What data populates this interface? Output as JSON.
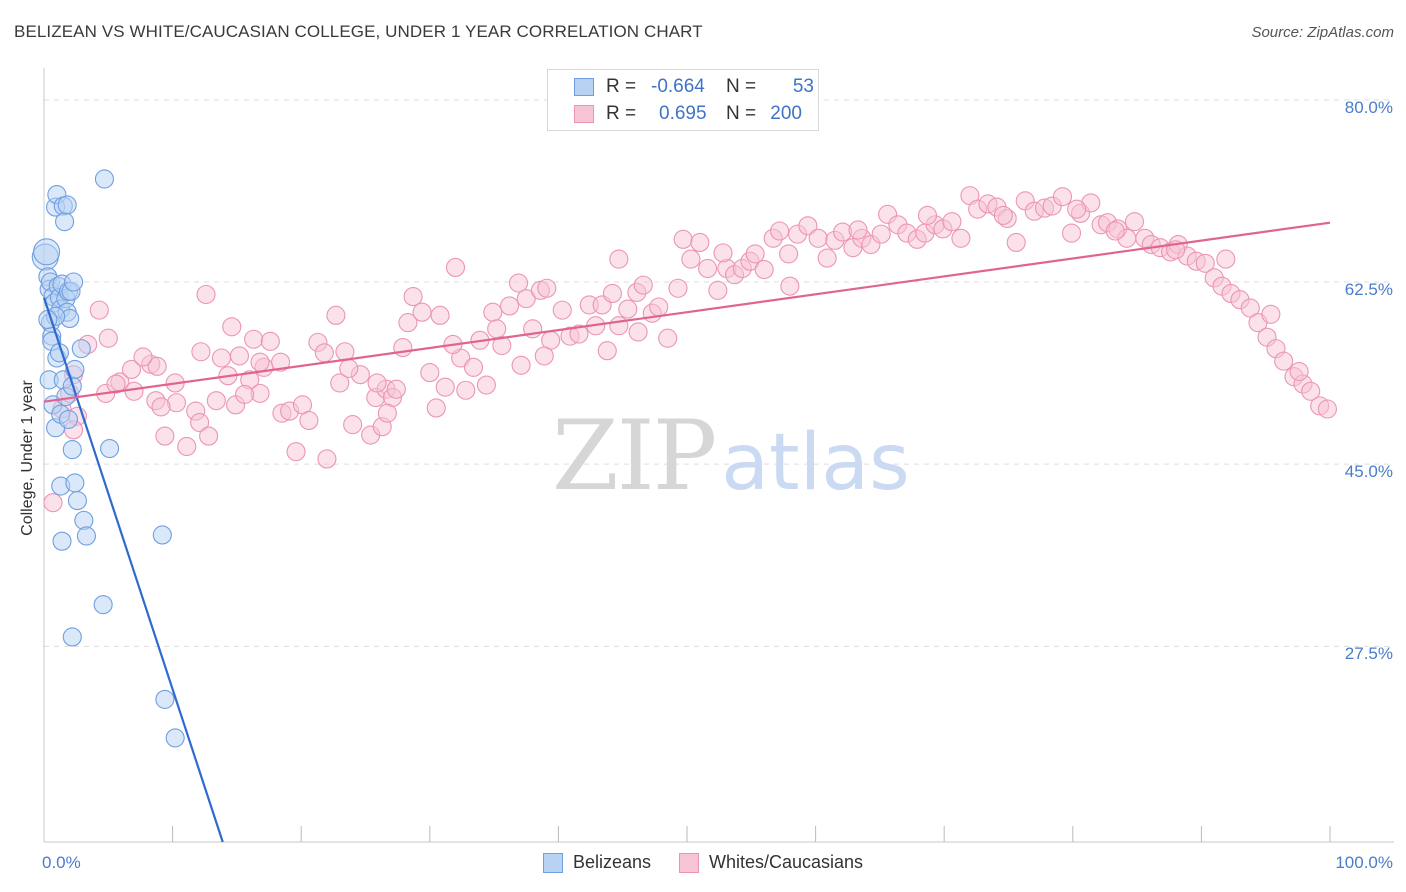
{
  "chart_data": {
    "type": "scatter",
    "title": "BELIZEAN VS WHITE/CAUCASIAN COLLEGE, UNDER 1 YEAR CORRELATION CHART",
    "source": "Source: ZipAtlas.com",
    "xlabel": "",
    "ylabel": "College, Under 1 year",
    "xlim": [
      0,
      100
    ],
    "ylim": [
      8.7,
      82.1
    ],
    "x_tick_labels": [
      "0.0%",
      "100.0%"
    ],
    "y_ticks": [
      {
        "value": 80.0,
        "label": "80.0%"
      },
      {
        "value": 62.5,
        "label": "62.5%"
      },
      {
        "value": 45.0,
        "label": "45.0%"
      },
      {
        "value": 27.5,
        "label": "27.5%"
      }
    ],
    "legend": [
      {
        "r_label": "R =",
        "r_value": "-0.664",
        "n_label": "N =",
        "n_value": "53"
      },
      {
        "r_label": "R =",
        "r_value": "0.695",
        "n_label": "N =",
        "n_value": "200"
      }
    ],
    "series": [
      {
        "name": "Belizeans",
        "color": "#6f9fe0",
        "fill": "#b8d2f4",
        "line_color": "#2f6bcf",
        "trend": {
          "x": [
            0.0,
            13.9
          ],
          "y": [
            61.0,
            8.7
          ]
        },
        "points": [
          [
            0.1,
            64.9
          ],
          [
            0.2,
            65.4
          ],
          [
            0.3,
            63.0
          ],
          [
            0.4,
            61.8
          ],
          [
            0.5,
            62.5
          ],
          [
            0.5,
            58.6
          ],
          [
            0.6,
            57.3
          ],
          [
            0.7,
            61.1
          ],
          [
            0.8,
            60.5
          ],
          [
            0.9,
            69.7
          ],
          [
            1.0,
            70.9
          ],
          [
            1.1,
            62.1
          ],
          [
            1.2,
            61.0
          ],
          [
            1.3,
            59.9
          ],
          [
            1.4,
            62.3
          ],
          [
            1.5,
            69.8
          ],
          [
            1.6,
            68.3
          ],
          [
            1.7,
            60.9
          ],
          [
            1.8,
            59.6
          ],
          [
            1.9,
            61.6
          ],
          [
            2.0,
            59.0
          ],
          [
            2.1,
            61.6
          ],
          [
            2.3,
            62.5
          ],
          [
            0.4,
            53.1
          ],
          [
            0.7,
            50.7
          ],
          [
            0.9,
            48.5
          ],
          [
            1.0,
            55.2
          ],
          [
            1.3,
            49.8
          ],
          [
            1.5,
            53.1
          ],
          [
            1.7,
            51.5
          ],
          [
            1.9,
            49.3
          ],
          [
            2.2,
            52.5
          ],
          [
            2.4,
            54.1
          ],
          [
            2.9,
            56.1
          ],
          [
            1.3,
            42.9
          ],
          [
            2.4,
            43.2
          ],
          [
            2.6,
            41.5
          ],
          [
            3.1,
            39.6
          ],
          [
            3.3,
            38.1
          ],
          [
            1.4,
            37.6
          ],
          [
            2.2,
            46.4
          ],
          [
            5.1,
            46.5
          ],
          [
            4.6,
            31.5
          ],
          [
            2.2,
            28.4
          ],
          [
            9.2,
            38.2
          ],
          [
            9.4,
            22.4
          ],
          [
            10.2,
            18.7
          ],
          [
            4.7,
            72.4
          ],
          [
            1.8,
            69.9
          ],
          [
            0.6,
            56.8
          ],
          [
            0.9,
            59.2
          ],
          [
            0.3,
            58.9
          ],
          [
            1.2,
            55.7
          ]
        ]
      },
      {
        "name": "Whites/Caucasians",
        "color": "#ec95b4",
        "fill": "#f7c4d6",
        "line_color": "#e0648f",
        "trend": {
          "x": [
            0.0,
            100.0
          ],
          "y": [
            51.0,
            68.2
          ]
        },
        "points": [
          [
            0.7,
            41.3
          ],
          [
            1.4,
            50.3
          ],
          [
            2.0,
            51.8
          ],
          [
            2.3,
            53.6
          ],
          [
            2.6,
            49.6
          ],
          [
            3.4,
            56.5
          ],
          [
            4.3,
            59.8
          ],
          [
            4.8,
            51.8
          ],
          [
            5.0,
            57.1
          ],
          [
            5.9,
            52.9
          ],
          [
            6.8,
            54.1
          ],
          [
            7.0,
            52.0
          ],
          [
            8.3,
            54.6
          ],
          [
            8.7,
            51.1
          ],
          [
            8.8,
            54.4
          ],
          [
            9.4,
            47.7
          ],
          [
            10.2,
            52.8
          ],
          [
            10.3,
            50.9
          ],
          [
            11.1,
            46.7
          ],
          [
            11.8,
            50.1
          ],
          [
            12.1,
            49.0
          ],
          [
            12.6,
            61.3
          ],
          [
            12.8,
            47.7
          ],
          [
            13.4,
            51.1
          ],
          [
            13.8,
            55.2
          ],
          [
            14.3,
            53.5
          ],
          [
            14.6,
            58.2
          ],
          [
            14.9,
            50.7
          ],
          [
            15.2,
            55.4
          ],
          [
            16.0,
            53.1
          ],
          [
            16.3,
            57.0
          ],
          [
            16.8,
            51.8
          ],
          [
            17.1,
            54.3
          ],
          [
            17.6,
            56.8
          ],
          [
            18.5,
            49.9
          ],
          [
            19.1,
            50.1
          ],
          [
            19.6,
            46.2
          ],
          [
            20.1,
            50.7
          ],
          [
            20.6,
            49.2
          ],
          [
            21.3,
            56.7
          ],
          [
            21.8,
            55.7
          ],
          [
            22.0,
            45.5
          ],
          [
            22.7,
            59.3
          ],
          [
            23.0,
            52.8
          ],
          [
            23.4,
            55.8
          ],
          [
            24.0,
            48.8
          ],
          [
            24.6,
            53.6
          ],
          [
            25.4,
            47.8
          ],
          [
            25.8,
            51.4
          ],
          [
            26.3,
            48.6
          ],
          [
            26.6,
            52.2
          ],
          [
            27.1,
            51.4
          ],
          [
            27.4,
            52.2
          ],
          [
            27.9,
            56.2
          ],
          [
            28.3,
            58.6
          ],
          [
            28.7,
            61.1
          ],
          [
            29.4,
            59.6
          ],
          [
            30.0,
            53.8
          ],
          [
            30.8,
            59.3
          ],
          [
            31.2,
            52.4
          ],
          [
            32.0,
            63.9
          ],
          [
            32.4,
            55.2
          ],
          [
            32.8,
            52.1
          ],
          [
            33.4,
            54.3
          ],
          [
            33.9,
            56.9
          ],
          [
            34.4,
            52.6
          ],
          [
            34.9,
            59.6
          ],
          [
            35.2,
            58.0
          ],
          [
            35.6,
            56.4
          ],
          [
            36.2,
            60.2
          ],
          [
            36.9,
            62.4
          ],
          [
            37.5,
            60.9
          ],
          [
            38.0,
            58.0
          ],
          [
            38.6,
            61.7
          ],
          [
            39.1,
            61.9
          ],
          [
            39.4,
            56.9
          ],
          [
            40.3,
            59.8
          ],
          [
            40.9,
            57.3
          ],
          [
            41.6,
            57.5
          ],
          [
            42.4,
            60.3
          ],
          [
            42.9,
            58.3
          ],
          [
            43.4,
            60.3
          ],
          [
            44.2,
            61.4
          ],
          [
            44.7,
            64.7
          ],
          [
            45.4,
            59.9
          ],
          [
            46.1,
            61.5
          ],
          [
            46.6,
            62.2
          ],
          [
            47.3,
            59.5
          ],
          [
            47.8,
            60.1
          ],
          [
            48.5,
            57.1
          ],
          [
            49.3,
            61.9
          ],
          [
            49.7,
            66.6
          ],
          [
            50.3,
            64.7
          ],
          [
            51.0,
            66.3
          ],
          [
            51.6,
            63.8
          ],
          [
            52.4,
            61.7
          ],
          [
            53.1,
            63.8
          ],
          [
            53.7,
            63.2
          ],
          [
            54.3,
            63.8
          ],
          [
            54.9,
            64.5
          ],
          [
            55.3,
            65.2
          ],
          [
            56.0,
            63.7
          ],
          [
            56.7,
            66.7
          ],
          [
            57.2,
            67.4
          ],
          [
            57.9,
            65.2
          ],
          [
            58.6,
            67.1
          ],
          [
            59.4,
            67.9
          ],
          [
            60.2,
            66.7
          ],
          [
            60.9,
            64.8
          ],
          [
            61.5,
            66.5
          ],
          [
            62.1,
            67.3
          ],
          [
            62.9,
            65.8
          ],
          [
            63.6,
            66.7
          ],
          [
            64.3,
            66.1
          ],
          [
            65.1,
            67.1
          ],
          [
            65.6,
            69.0
          ],
          [
            66.4,
            68.0
          ],
          [
            67.1,
            67.2
          ],
          [
            67.9,
            66.6
          ],
          [
            68.5,
            67.2
          ],
          [
            69.3,
            68.0
          ],
          [
            69.9,
            67.6
          ],
          [
            70.6,
            68.3
          ],
          [
            71.3,
            66.7
          ],
          [
            72.0,
            70.8
          ],
          [
            72.6,
            69.5
          ],
          [
            73.4,
            70.0
          ],
          [
            74.1,
            69.7
          ],
          [
            74.9,
            68.6
          ],
          [
            75.6,
            66.3
          ],
          [
            76.3,
            70.3
          ],
          [
            77.0,
            69.3
          ],
          [
            77.8,
            69.6
          ],
          [
            78.4,
            69.8
          ],
          [
            79.2,
            70.7
          ],
          [
            79.9,
            67.2
          ],
          [
            80.6,
            69.1
          ],
          [
            81.4,
            70.1
          ],
          [
            82.2,
            68.0
          ],
          [
            82.7,
            68.2
          ],
          [
            83.5,
            67.6
          ],
          [
            84.2,
            66.7
          ],
          [
            84.8,
            68.3
          ],
          [
            85.6,
            66.7
          ],
          [
            86.1,
            66.1
          ],
          [
            86.8,
            65.8
          ],
          [
            87.6,
            65.4
          ],
          [
            88.2,
            66.1
          ],
          [
            88.9,
            65.0
          ],
          [
            89.6,
            64.5
          ],
          [
            90.3,
            64.3
          ],
          [
            91.0,
            62.9
          ],
          [
            91.6,
            62.1
          ],
          [
            92.3,
            61.4
          ],
          [
            93.0,
            60.8
          ],
          [
            93.8,
            60.0
          ],
          [
            94.4,
            58.6
          ],
          [
            95.1,
            57.2
          ],
          [
            95.8,
            56.1
          ],
          [
            96.4,
            54.9
          ],
          [
            97.2,
            53.4
          ],
          [
            97.9,
            52.7
          ],
          [
            98.5,
            52.0
          ],
          [
            99.2,
            50.6
          ],
          [
            99.8,
            50.3
          ],
          [
            12.2,
            55.8
          ],
          [
            18.4,
            54.8
          ],
          [
            26.7,
            49.9
          ],
          [
            30.5,
            50.4
          ],
          [
            37.1,
            54.5
          ],
          [
            43.8,
            55.9
          ],
          [
            5.6,
            52.7
          ],
          [
            7.7,
            55.3
          ],
          [
            15.6,
            51.7
          ],
          [
            23.7,
            54.2
          ],
          [
            31.8,
            56.5
          ],
          [
            38.9,
            55.4
          ],
          [
            44.7,
            58.3
          ],
          [
            46.2,
            57.7
          ],
          [
            52.8,
            65.3
          ],
          [
            58.0,
            62.1
          ],
          [
            63.3,
            67.5
          ],
          [
            68.7,
            68.9
          ],
          [
            74.6,
            68.9
          ],
          [
            80.3,
            69.5
          ],
          [
            83.3,
            67.4
          ],
          [
            88.0,
            65.6
          ],
          [
            91.9,
            64.7
          ],
          [
            95.4,
            59.4
          ],
          [
            97.6,
            53.9
          ],
          [
            2.3,
            48.3
          ],
          [
            9.1,
            50.5
          ],
          [
            16.8,
            54.8
          ],
          [
            25.9,
            52.8
          ]
        ]
      }
    ]
  },
  "colors": {
    "blue_text": "#4a7ccc",
    "grid": "#dcdcdc",
    "axis": "#bbbbbb"
  },
  "watermark": {
    "part1": "ZIP",
    "part2": "atlas"
  }
}
